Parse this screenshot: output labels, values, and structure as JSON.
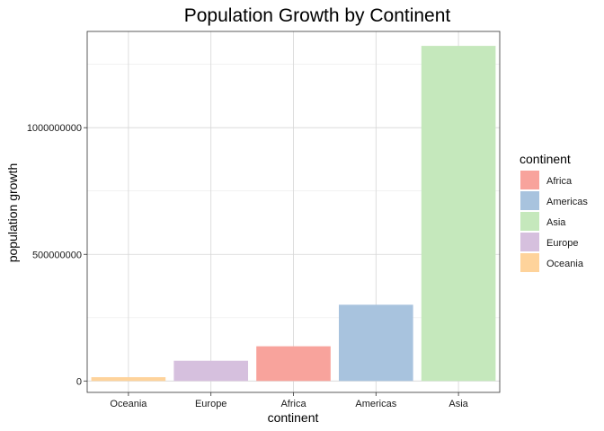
{
  "chart_data": {
    "type": "bar",
    "title": "Population Growth by Continent",
    "xlabel": "continent",
    "ylabel": "population growth",
    "categories": [
      "Oceania",
      "Europe",
      "Africa",
      "Americas",
      "Asia"
    ],
    "values": [
      15000000,
      80000000,
      137000000,
      301000000,
      1323000000
    ],
    "ylim": [
      -45000000,
      1380000000
    ],
    "yticks": [
      0,
      500000000,
      1000000000
    ],
    "ytick_labels": [
      "0",
      "500000000",
      "1000000000"
    ],
    "grid": true,
    "legend": {
      "title": "continent",
      "position": "right",
      "entries": [
        "Africa",
        "Americas",
        "Asia",
        "Europe",
        "Oceania"
      ]
    },
    "colors": {
      "Africa": "#F8A39C",
      "Americas": "#A8C3DE",
      "Asia": "#C5E8BC",
      "Europe": "#D6C0DE",
      "Oceania": "#FED39B"
    }
  }
}
